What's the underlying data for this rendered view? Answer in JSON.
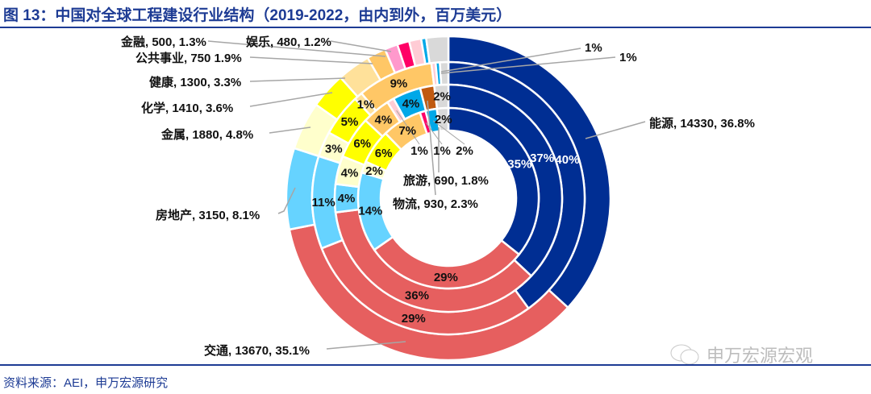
{
  "title": "图 13：中国对全球工程建设行业结构（2019-2022，由内到外，百万美元）",
  "source": "资料来源：AEI，申万宏源研究",
  "watermark": "申万宏源宏观",
  "colors": {
    "navy": "#002e93",
    "red": "#e65f5f",
    "sky": "#66d3ff",
    "lightyellow": "#ffffcc",
    "yellow": "#ffff00",
    "lightorange": "#ffe19a",
    "orange": "#ffc766",
    "pink": "#ff99cc",
    "magenta": "#ff0066",
    "lightpink": "#ffccd5",
    "blue": "#00a8e8",
    "grey": "#d9d9d9",
    "brown": "#c05a10",
    "title": "#1d3b94"
  },
  "chart_data": {
    "type": "donut",
    "title": "图 13：中国对全球工程建设行业结构（2019-2022，由内到外，百万美元）",
    "rings": [
      {
        "slices": [
          {
            "color": "navy",
            "value": 36.8,
            "label": ""
          },
          {
            "color": "red",
            "value": 35.1,
            "label": ""
          },
          {
            "color": "sky",
            "value": 8.1,
            "label": ""
          },
          {
            "color": "lightyellow",
            "value": 4.8,
            "label": ""
          },
          {
            "color": "yellow",
            "value": 3.6,
            "label": ""
          },
          {
            "color": "lightorange",
            "value": 3.3,
            "label": ""
          },
          {
            "color": "orange",
            "value": 1.9,
            "label": ""
          },
          {
            "color": "pink",
            "value": 1.3,
            "label": ""
          },
          {
            "color": "magenta",
            "value": 1.2,
            "label": ""
          },
          {
            "color": "lightpink",
            "value": 1.2,
            "label": ""
          },
          {
            "color": "blue",
            "value": 0.5,
            "label": ""
          },
          {
            "color": "grey",
            "value": 2.2,
            "label": ""
          }
        ]
      },
      {
        "slices": [
          {
            "color": "navy",
            "value": 40,
            "label": "40%"
          },
          {
            "color": "red",
            "value": 29,
            "label": "29%"
          },
          {
            "color": "sky",
            "value": 11,
            "label": "11%"
          },
          {
            "color": "lightyellow",
            "value": 3,
            "label": "3%"
          },
          {
            "color": "yellow",
            "value": 5,
            "label": "5%"
          },
          {
            "color": "lightorange",
            "value": 1,
            "label": "1%"
          },
          {
            "color": "orange",
            "value": 9,
            "label": "9%"
          },
          {
            "color": "lightpink",
            "value": 0.5,
            "label": ""
          },
          {
            "color": "blue",
            "value": 0.5,
            "label": ""
          },
          {
            "color": "grey",
            "value": 1,
            "label": ""
          }
        ]
      },
      {
        "slices": [
          {
            "color": "navy",
            "value": 37,
            "label": "37%"
          },
          {
            "color": "red",
            "value": 36,
            "label": "36%"
          },
          {
            "color": "sky",
            "value": 4,
            "label": "4%"
          },
          {
            "color": "lightyellow",
            "value": 4,
            "label": "4%"
          },
          {
            "color": "yellow",
            "value": 6,
            "label": "6%"
          },
          {
            "color": "orange",
            "value": 4,
            "label": "4%"
          },
          {
            "color": "lightpink",
            "value": 1,
            "label": "1%"
          },
          {
            "color": "blue",
            "value": 4,
            "label": "4%"
          },
          {
            "color": "brown",
            "value": 2,
            "label": ""
          },
          {
            "color": "grey",
            "value": 2,
            "label": "2%"
          }
        ]
      },
      {
        "slices": [
          {
            "color": "navy",
            "value": 35,
            "label": "35%"
          },
          {
            "color": "red",
            "value": 29,
            "label": "29%"
          },
          {
            "color": "sky",
            "value": 14,
            "label": "14%"
          },
          {
            "color": "lightyellow",
            "value": 2,
            "label": "2%"
          },
          {
            "color": "yellow",
            "value": 6,
            "label": "6%"
          },
          {
            "color": "orange",
            "value": 7,
            "label": "7%"
          },
          {
            "color": "magenta",
            "value": 1,
            "label": "1%"
          },
          {
            "color": "blue",
            "value": 2,
            "label": "2%"
          },
          {
            "color": "grey",
            "value": 2,
            "label": "2%"
          }
        ]
      }
    ],
    "callouts": [
      {
        "text": "金融, 500, 1.3%",
        "name": "金融",
        "value": 500,
        "pct": 1.3
      },
      {
        "text": "娱乐, 480, 1.2%",
        "name": "娱乐",
        "value": 480,
        "pct": 1.2
      },
      {
        "text": "公共事业, 750 1.9%",
        "name": "公共事业",
        "value": 750,
        "pct": 1.9
      },
      {
        "text": "健康, 1300, 3.3%",
        "name": "健康",
        "value": 1300,
        "pct": 3.3
      },
      {
        "text": "化学, 1410, 3.6%",
        "name": "化学",
        "value": 1410,
        "pct": 3.6
      },
      {
        "text": "金属, 1880, 4.8%",
        "name": "金属",
        "value": 1880,
        "pct": 4.8
      },
      {
        "text": "房地产, 3150, 8.1%",
        "name": "房地产",
        "value": 3150,
        "pct": 8.1
      },
      {
        "text": "交通, 13670, 35.1%",
        "name": "交通",
        "value": 13670,
        "pct": 35.1
      },
      {
        "text": "能源, 14330, 36.8%",
        "name": "能源",
        "value": 14330,
        "pct": 36.8
      },
      {
        "text": "1%"
      },
      {
        "text": "1%"
      },
      {
        "text": "旅游, 690, 1.8%",
        "name": "旅游",
        "value": 690,
        "pct": 1.8
      },
      {
        "text": "物流, 930, 2.3%",
        "name": "物流",
        "value": 930,
        "pct": 2.3
      }
    ]
  }
}
